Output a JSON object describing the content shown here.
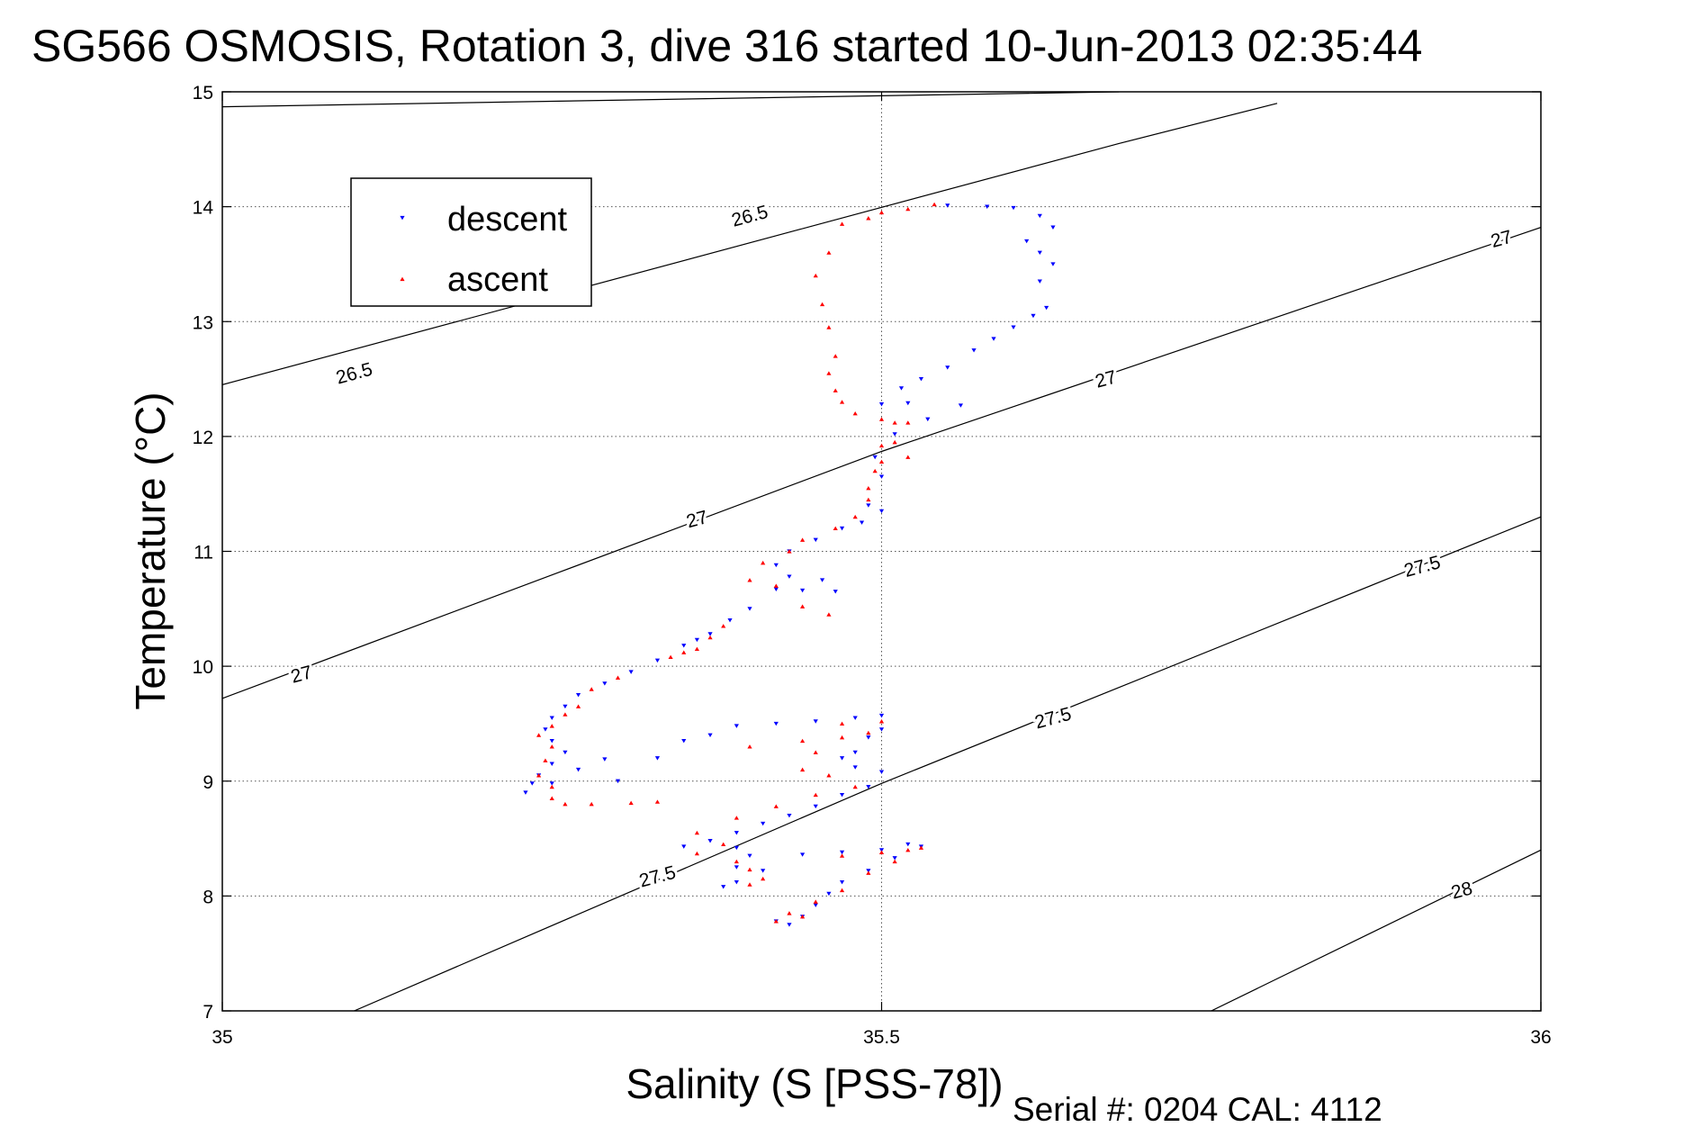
{
  "chart_data": {
    "type": "scatter",
    "title": "SG566 OSMOSIS, Rotation 3, dive 316 started 10-Jun-2013 02:35:44",
    "xlabel": "Salinity (S [PSS-78])",
    "ylabel": "Temperature (°C)",
    "xlim": [
      35,
      36
    ],
    "ylim": [
      7,
      15
    ],
    "x_ticks": [
      35,
      35.5,
      36
    ],
    "x_tick_labels": [
      "35",
      "35.5",
      "36"
    ],
    "y_ticks": [
      7,
      8,
      9,
      10,
      11,
      12,
      13,
      14,
      15
    ],
    "y_tick_labels": [
      "7",
      "8",
      "9",
      "10",
      "11",
      "12",
      "13",
      "14",
      "15"
    ],
    "grid": true,
    "legend_position": "top-left",
    "footer": "Serial #: 0204  CAL: 4112",
    "density_contours": [
      {
        "level": "26.5",
        "points": [
          [
            35.0,
            14.87
          ],
          [
            35.68,
            15.0
          ]
        ],
        "labels": [
          [
            35.4,
            13.92
          ]
        ]
      },
      {
        "level": "26.5",
        "points": [
          [
            35.0,
            12.45
          ],
          [
            35.68,
            14.55
          ],
          [
            35.8,
            14.9
          ]
        ],
        "labels": [
          [
            35.1,
            12.55
          ]
        ]
      },
      {
        "level": "27",
        "points": [
          [
            35.0,
            9.72
          ],
          [
            35.5,
            11.87
          ],
          [
            36.0,
            13.82
          ]
        ],
        "labels": [
          [
            35.06,
            9.93
          ],
          [
            35.36,
            11.28
          ],
          [
            35.67,
            12.5
          ],
          [
            35.97,
            13.72
          ]
        ]
      },
      {
        "level": "27.5",
        "points": [
          [
            35.1,
            7.0
          ],
          [
            35.5,
            8.98
          ],
          [
            36.0,
            11.3
          ]
        ],
        "labels": [
          [
            35.33,
            8.17
          ],
          [
            35.63,
            9.55
          ],
          [
            35.91,
            10.87
          ]
        ]
      },
      {
        "level": "28",
        "points": [
          [
            35.75,
            7.0
          ],
          [
            36.0,
            8.4
          ]
        ],
        "labels": [
          [
            35.94,
            8.05
          ]
        ]
      }
    ],
    "series": [
      {
        "name": "descent",
        "color": "#0000ff",
        "marker": "triangle-down",
        "points": [
          [
            35.55,
            14.01
          ],
          [
            35.58,
            14.0
          ],
          [
            35.6,
            13.99
          ],
          [
            35.62,
            13.92
          ],
          [
            35.63,
            13.82
          ],
          [
            35.61,
            13.7
          ],
          [
            35.62,
            13.6
          ],
          [
            35.63,
            13.5
          ],
          [
            35.62,
            13.35
          ],
          [
            35.625,
            13.12
          ],
          [
            35.615,
            13.05
          ],
          [
            35.6,
            12.95
          ],
          [
            35.585,
            12.85
          ],
          [
            35.57,
            12.75
          ],
          [
            35.55,
            12.6
          ],
          [
            35.53,
            12.5
          ],
          [
            35.515,
            12.42
          ],
          [
            35.56,
            12.27
          ],
          [
            35.52,
            12.29
          ],
          [
            35.5,
            12.28
          ],
          [
            35.535,
            12.15
          ],
          [
            35.51,
            12.02
          ],
          [
            35.495,
            11.82
          ],
          [
            35.5,
            11.65
          ],
          [
            35.49,
            11.4
          ],
          [
            35.5,
            11.35
          ],
          [
            35.485,
            11.25
          ],
          [
            35.47,
            11.2
          ],
          [
            35.45,
            11.1
          ],
          [
            35.43,
            11.0
          ],
          [
            35.42,
            10.88
          ],
          [
            35.43,
            10.78
          ],
          [
            35.455,
            10.75
          ],
          [
            35.465,
            10.65
          ],
          [
            35.44,
            10.66
          ],
          [
            35.42,
            10.67
          ],
          [
            35.4,
            10.5
          ],
          [
            35.385,
            10.4
          ],
          [
            35.37,
            10.28
          ],
          [
            35.36,
            10.23
          ],
          [
            35.35,
            10.18
          ],
          [
            35.33,
            10.05
          ],
          [
            35.31,
            9.95
          ],
          [
            35.29,
            9.85
          ],
          [
            35.27,
            9.75
          ],
          [
            35.26,
            9.65
          ],
          [
            35.25,
            9.55
          ],
          [
            35.245,
            9.45
          ],
          [
            35.25,
            9.35
          ],
          [
            35.26,
            9.25
          ],
          [
            35.25,
            9.15
          ],
          [
            35.24,
            9.05
          ],
          [
            35.235,
            8.98
          ],
          [
            35.23,
            8.9
          ],
          [
            35.25,
            8.98
          ],
          [
            35.27,
            9.1
          ],
          [
            35.29,
            9.19
          ],
          [
            35.3,
            9.0
          ],
          [
            35.33,
            9.2
          ],
          [
            35.35,
            9.35
          ],
          [
            35.37,
            9.4
          ],
          [
            35.39,
            9.48
          ],
          [
            35.42,
            9.5
          ],
          [
            35.45,
            9.52
          ],
          [
            35.48,
            9.55
          ],
          [
            35.5,
            9.57
          ],
          [
            35.5,
            9.45
          ],
          [
            35.49,
            9.38
          ],
          [
            35.48,
            9.25
          ],
          [
            35.47,
            9.2
          ],
          [
            35.48,
            9.12
          ],
          [
            35.5,
            9.08
          ],
          [
            35.49,
            8.95
          ],
          [
            35.47,
            8.88
          ],
          [
            35.45,
            8.78
          ],
          [
            35.43,
            8.7
          ],
          [
            35.41,
            8.63
          ],
          [
            35.39,
            8.55
          ],
          [
            35.37,
            8.48
          ],
          [
            35.35,
            8.43
          ],
          [
            35.39,
            8.42
          ],
          [
            35.4,
            8.35
          ],
          [
            35.39,
            8.25
          ],
          [
            35.41,
            8.22
          ],
          [
            35.39,
            8.12
          ],
          [
            35.38,
            8.08
          ],
          [
            35.44,
            8.36
          ],
          [
            35.47,
            8.38
          ],
          [
            35.5,
            8.4
          ],
          [
            35.52,
            8.45
          ],
          [
            35.53,
            8.43
          ],
          [
            35.51,
            8.33
          ],
          [
            35.49,
            8.22
          ],
          [
            35.47,
            8.12
          ],
          [
            35.46,
            8.02
          ],
          [
            35.45,
            7.92
          ],
          [
            35.44,
            7.82
          ],
          [
            35.43,
            7.75
          ],
          [
            35.42,
            7.78
          ]
        ]
      },
      {
        "name": "ascent",
        "color": "#ff0000",
        "marker": "triangle-up",
        "points": [
          [
            35.54,
            14.02
          ],
          [
            35.52,
            13.98
          ],
          [
            35.5,
            13.95
          ],
          [
            35.49,
            13.9
          ],
          [
            35.47,
            13.85
          ],
          [
            35.46,
            13.6
          ],
          [
            35.45,
            13.4
          ],
          [
            35.455,
            13.15
          ],
          [
            35.46,
            12.95
          ],
          [
            35.465,
            12.7
          ],
          [
            35.46,
            12.55
          ],
          [
            35.465,
            12.4
          ],
          [
            35.47,
            12.3
          ],
          [
            35.48,
            12.2
          ],
          [
            35.5,
            12.15
          ],
          [
            35.51,
            12.12
          ],
          [
            35.52,
            12.12
          ],
          [
            35.51,
            11.95
          ],
          [
            35.5,
            11.92
          ],
          [
            35.52,
            11.82
          ],
          [
            35.5,
            11.78
          ],
          [
            35.495,
            11.7
          ],
          [
            35.49,
            11.55
          ],
          [
            35.49,
            11.45
          ],
          [
            35.48,
            11.3
          ],
          [
            35.465,
            11.2
          ],
          [
            35.44,
            11.1
          ],
          [
            35.43,
            11.0
          ],
          [
            35.41,
            10.9
          ],
          [
            35.4,
            10.75
          ],
          [
            35.42,
            10.7
          ],
          [
            35.44,
            10.52
          ],
          [
            35.46,
            10.45
          ],
          [
            35.38,
            10.35
          ],
          [
            35.37,
            10.25
          ],
          [
            35.36,
            10.15
          ],
          [
            35.35,
            10.12
          ],
          [
            35.34,
            10.08
          ],
          [
            35.3,
            9.9
          ],
          [
            35.28,
            9.8
          ],
          [
            35.27,
            9.65
          ],
          [
            35.26,
            9.58
          ],
          [
            35.25,
            9.48
          ],
          [
            35.24,
            9.4
          ],
          [
            35.25,
            9.3
          ],
          [
            35.245,
            9.18
          ],
          [
            35.24,
            9.05
          ],
          [
            35.25,
            8.95
          ],
          [
            35.25,
            8.85
          ],
          [
            35.26,
            8.8
          ],
          [
            35.28,
            8.8
          ],
          [
            35.31,
            8.81
          ],
          [
            35.33,
            8.82
          ],
          [
            35.4,
            9.3
          ],
          [
            35.44,
            9.35
          ],
          [
            35.47,
            9.38
          ],
          [
            35.49,
            9.42
          ],
          [
            35.5,
            9.52
          ],
          [
            35.47,
            9.5
          ],
          [
            35.45,
            9.25
          ],
          [
            35.44,
            9.1
          ],
          [
            35.46,
            9.05
          ],
          [
            35.48,
            8.95
          ],
          [
            35.45,
            8.88
          ],
          [
            35.42,
            8.78
          ],
          [
            35.39,
            8.68
          ],
          [
            35.36,
            8.55
          ],
          [
            35.38,
            8.45
          ],
          [
            35.36,
            8.37
          ],
          [
            35.39,
            8.3
          ],
          [
            35.4,
            8.23
          ],
          [
            35.41,
            8.15
          ],
          [
            35.4,
            8.1
          ],
          [
            35.47,
            8.35
          ],
          [
            35.5,
            8.38
          ],
          [
            35.52,
            8.4
          ],
          [
            35.53,
            8.42
          ],
          [
            35.51,
            8.3
          ],
          [
            35.49,
            8.2
          ],
          [
            35.47,
            8.05
          ],
          [
            35.45,
            7.95
          ],
          [
            35.43,
            7.85
          ],
          [
            35.42,
            7.78
          ],
          [
            35.44,
            7.82
          ]
        ]
      }
    ]
  }
}
